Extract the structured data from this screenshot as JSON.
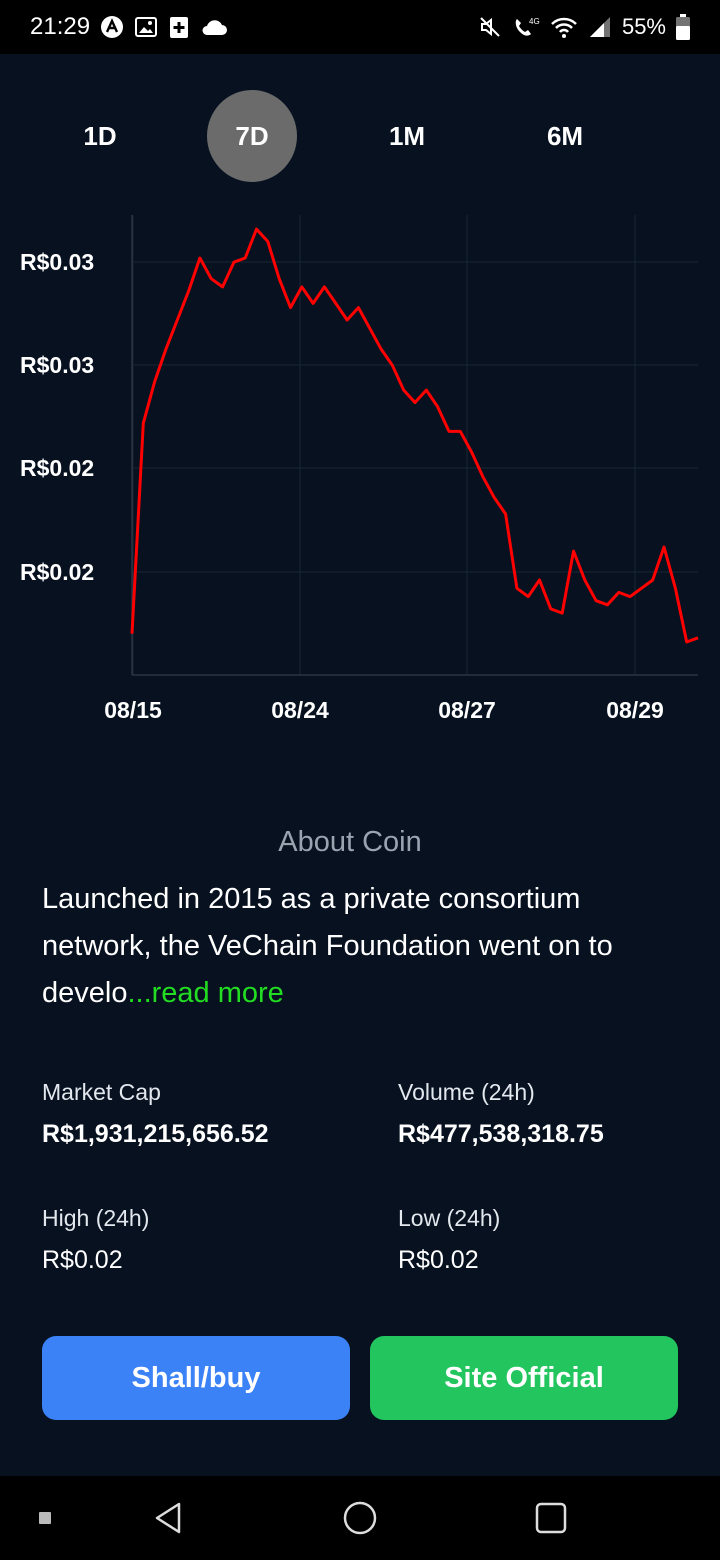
{
  "status_bar": {
    "time": "21:29",
    "battery_percent": "55%",
    "left_icons": [
      "autonomous-icon",
      "image-icon",
      "medical-icon",
      "cloud-icon"
    ],
    "right_icons": [
      "mute-icon",
      "volte-icon",
      "wifi-icon",
      "signal-icon",
      "battery-icon"
    ]
  },
  "range_tabs": [
    {
      "label": "1D",
      "active": false
    },
    {
      "label": "7D",
      "active": true
    },
    {
      "label": "1M",
      "active": false
    },
    {
      "label": "6M",
      "active": false
    }
  ],
  "chart_data": {
    "type": "line",
    "line_color": "#ff0000",
    "y_tick_labels": [
      "R$0.03",
      "R$0.03",
      "R$0.02",
      "R$0.02"
    ],
    "x_tick_labels": [
      "08/15",
      "08/24",
      "08/27",
      "08/29"
    ],
    "ylim": [
      0.0189,
      0.0298
    ],
    "x": [
      0,
      2,
      4,
      6,
      8,
      10,
      12,
      14,
      16,
      18,
      20,
      22,
      24,
      26,
      28,
      30,
      32,
      34,
      36,
      38,
      40,
      42,
      44,
      46,
      48,
      50,
      52,
      54,
      56,
      58,
      60,
      62,
      64,
      66,
      68,
      70,
      72,
      74,
      76,
      78,
      80,
      82,
      84,
      86,
      88,
      90,
      92,
      94,
      96,
      98,
      100
    ],
    "series": [
      {
        "values": [
          0.0199,
          0.025,
          0.026,
          0.0268,
          0.0275,
          0.0282,
          0.029,
          0.0285,
          0.0283,
          0.0289,
          0.029,
          0.0297,
          0.0294,
          0.0285,
          0.0278,
          0.0283,
          0.0279,
          0.0283,
          0.0279,
          0.0275,
          0.0278,
          0.0273,
          0.0268,
          0.0264,
          0.0258,
          0.0255,
          0.0258,
          0.0254,
          0.0248,
          0.0248,
          0.0243,
          0.0237,
          0.0232,
          0.0228,
          0.021,
          0.0208,
          0.0212,
          0.0205,
          0.0204,
          0.0219,
          0.0212,
          0.0207,
          0.0206,
          0.0209,
          0.0208,
          0.021,
          0.0212,
          0.022,
          0.021,
          0.0197,
          0.0198
        ]
      }
    ],
    "grid": true
  },
  "about": {
    "title": "About Coin",
    "text": "Launched in 2015 as a private consortium network, the VeChain Foundation went on to develo",
    "read_more": "...read more"
  },
  "stats": {
    "market_cap": {
      "label": "Market Cap",
      "value": "R$1,931,215,656.52"
    },
    "volume": {
      "label": "Volume (24h)",
      "value": "R$477,538,318.75"
    },
    "high": {
      "label": "High (24h)",
      "value": "R$0.02"
    },
    "low": {
      "label": "Low (24h)",
      "value": "R$0.02"
    }
  },
  "buttons": {
    "buy": "Shall/buy",
    "site": "Site Official"
  }
}
